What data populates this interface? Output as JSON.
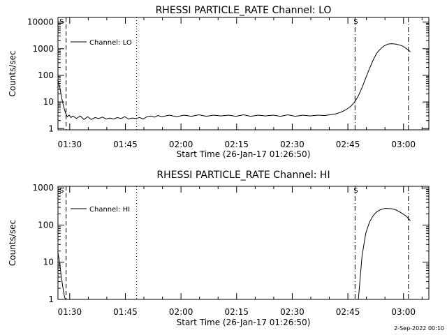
{
  "chart_data": [
    {
      "type": "line",
      "title": "RHESSI PARTICLE_RATE Channel: LO",
      "ylabel": "Counts/sec",
      "xlabel": "Start Time (26-Jan-17 01:26:50)",
      "yscale": "log",
      "ylim": [
        0.9,
        15000
      ],
      "y_ticks": [
        1,
        10,
        100,
        1000,
        10000
      ],
      "y_tick_labels": [
        "1",
        "10",
        "100",
        "1000",
        "10000"
      ],
      "xlim_minutes": [
        0,
        100
      ],
      "x_ticks_minutes": [
        3.17,
        18.17,
        33.17,
        48.17,
        63.17,
        78.17,
        93.17
      ],
      "x_tick_labels": [
        "01:30",
        "01:45",
        "02:00",
        "02:15",
        "02:30",
        "02:45",
        "03:00"
      ],
      "legend": "Channel: LO",
      "vlines": [
        {
          "x": 2.2,
          "style": "dashed"
        },
        {
          "x": 21.2,
          "style": "dotted"
        },
        {
          "x": 80.1,
          "style": "dashdot"
        },
        {
          "x": 94.5,
          "style": "dashdot"
        }
      ],
      "markers": [
        {
          "x": 1.0,
          "label": "S"
        },
        {
          "x": 80.3,
          "label": "S"
        }
      ],
      "series": [
        {
          "name": "Channel: LO",
          "x": [
            0,
            0.5,
            1,
            1.5,
            2,
            2.5,
            3,
            3.5,
            4,
            5,
            6,
            7,
            8,
            9,
            10,
            11,
            12,
            13,
            14,
            15,
            16,
            17,
            18,
            19,
            20,
            21,
            22,
            23,
            24,
            25,
            26,
            27,
            28,
            30,
            32,
            34,
            36,
            38,
            40,
            42,
            44,
            46,
            48,
            50,
            52,
            54,
            56,
            58,
            60,
            62,
            64,
            66,
            68,
            70,
            72,
            74,
            75,
            76,
            77,
            78,
            79,
            80,
            81,
            82,
            83,
            84,
            85,
            86,
            87,
            88,
            89,
            90,
            91,
            92,
            93,
            94,
            95
          ],
          "values": [
            60,
            35,
            14,
            7,
            4,
            2.8,
            3.2,
            2.6,
            3,
            2.4,
            3,
            2.2,
            2.8,
            2.2,
            2.6,
            2.4,
            2.7,
            2.3,
            2.5,
            2.3,
            2.6,
            2.4,
            2.8,
            2.3,
            2.5,
            2.4,
            2.6,
            2.3,
            2.8,
            3,
            2.7,
            3.1,
            2.8,
            3.2,
            2.8,
            3.2,
            2.9,
            3.3,
            2.9,
            3.2,
            3,
            3.2,
            2.9,
            3.3,
            2.9,
            3.2,
            3,
            3.2,
            2.9,
            3.3,
            2.9,
            3.2,
            3,
            3.2,
            3.1,
            3.4,
            3.6,
            4,
            4.6,
            5.5,
            7,
            10,
            17,
            35,
            80,
            180,
            380,
            700,
            1000,
            1300,
            1500,
            1550,
            1500,
            1400,
            1250,
            1000,
            780
          ]
        }
      ]
    },
    {
      "type": "line",
      "title": "RHESSI PARTICLE_RATE Channel: HI",
      "ylabel": "Counts/sec",
      "xlabel": "Start Time (26-Jan-17 01:26:50)",
      "yscale": "log",
      "ylim": [
        1,
        1100
      ],
      "y_ticks": [
        1,
        10,
        100,
        1000
      ],
      "y_tick_labels": [
        "1",
        "10",
        "100",
        "1000"
      ],
      "xlim_minutes": [
        0,
        100
      ],
      "x_ticks_minutes": [
        3.17,
        18.17,
        33.17,
        48.17,
        63.17,
        78.17,
        93.17
      ],
      "x_tick_labels": [
        "01:30",
        "01:45",
        "02:00",
        "02:15",
        "02:30",
        "02:45",
        "03:00"
      ],
      "legend": "Channel: HI",
      "vlines": [
        {
          "x": 2.2,
          "style": "dashed"
        },
        {
          "x": 21.2,
          "style": "dotted"
        },
        {
          "x": 80.1,
          "style": "dashdot"
        },
        {
          "x": 94.5,
          "style": "dashdot"
        }
      ],
      "markers": [
        {
          "x": 1.0,
          "label": "S"
        },
        {
          "x": 80.3,
          "label": "S"
        }
      ],
      "series": [
        {
          "name": "Channel: HI",
          "x": [
            0,
            0.3,
            0.6,
            0.9,
            1.2,
            1.5,
            1.8,
            2.0
          ],
          "values": [
            18,
            12,
            7,
            4,
            2.5,
            1.6,
            1.15,
            1.0
          ]
        },
        {
          "name": "Channel: HI (event)",
          "x": [
            81.0,
            81.5,
            82,
            83,
            84,
            85,
            86,
            87,
            88,
            89,
            90,
            91,
            92,
            93,
            94,
            95
          ],
          "values": [
            1.0,
            4,
            15,
            60,
            120,
            180,
            230,
            260,
            280,
            280,
            275,
            260,
            230,
            200,
            170,
            130
          ]
        }
      ]
    }
  ],
  "footer": {
    "timestamp": "2-Sep-2022 00:10"
  },
  "colors": {
    "foreground": "#000000",
    "background": "#ffffff"
  }
}
